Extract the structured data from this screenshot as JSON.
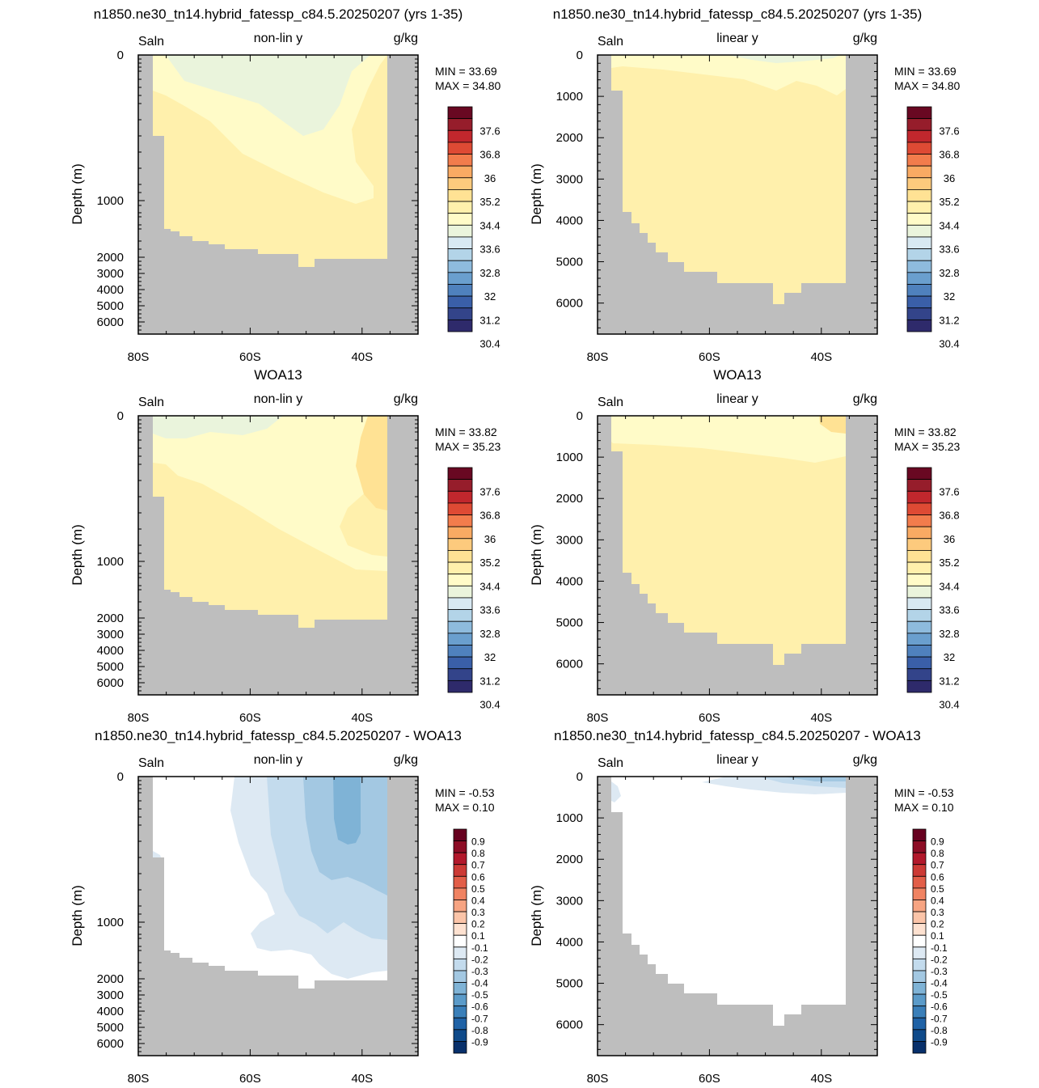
{
  "colors": {
    "land": "#bebebe",
    "abs_levels": [
      "#2e2a6b",
      "#33448a",
      "#3a5fa8",
      "#4f81bd",
      "#6a9fce",
      "#8ebbdd",
      "#b3d4e8",
      "#d8e9f2",
      "#eaf4dc",
      "#fffbc8",
      "#fff0ac",
      "#ffe294",
      "#fdca7d",
      "#f9aa63",
      "#f27c4c",
      "#de4a34",
      "#c1272d",
      "#961d2b",
      "#690822"
    ],
    "diff_levels": [
      "#08306b",
      "#0f4a8a",
      "#1f62a6",
      "#3a7fb9",
      "#5b9bc9",
      "#7fb3d6",
      "#a3c8e2",
      "#c3dbed",
      "#dde9f3",
      "#ffffff",
      "#fde1d0",
      "#fbc4a8",
      "#f7a482",
      "#f08362",
      "#e25e48",
      "#cc3a35",
      "#b2182b",
      "#8d0d25",
      "#67001f"
    ]
  },
  "panels": [
    {
      "id": "model-nonlin",
      "title": "n1850.ne30_tn14.hybrid_fatessp_c84.5.20250207 (yrs 1-35)",
      "left_label": "Saln",
      "center_label": "non-lin y",
      "right_label": "g/kg",
      "min_text": "MIN =  33.69",
      "max_text": "MAX =  34.80",
      "ylabel": "Depth (m)"
    },
    {
      "id": "model-lin",
      "title": "n1850.ne30_tn14.hybrid_fatessp_c84.5.20250207 (yrs 1-35)",
      "left_label": "Saln",
      "center_label": "linear y",
      "right_label": "g/kg",
      "min_text": "MIN =  33.69",
      "max_text": "MAX =  34.80",
      "ylabel": "Depth (m)"
    },
    {
      "id": "obs-nonlin",
      "title": "WOA13",
      "left_label": "Saln",
      "center_label": "non-lin y",
      "right_label": "g/kg",
      "min_text": "MIN =  33.82",
      "max_text": "MAX =  35.23",
      "ylabel": "Depth (m)"
    },
    {
      "id": "obs-lin",
      "title": "WOA13",
      "left_label": "Saln",
      "center_label": "linear y",
      "right_label": "g/kg",
      "min_text": "MIN =  33.82",
      "max_text": "MAX =  35.23",
      "ylabel": "Depth (m)"
    },
    {
      "id": "diff-nonlin",
      "title": "n1850.ne30_tn14.hybrid_fatessp_c84.5.20250207 - WOA13",
      "left_label": "Saln",
      "center_label": "non-lin y",
      "right_label": "g/kg",
      "min_text": "MIN =  -0.53",
      "max_text": "MAX =   0.10",
      "ylabel": "Depth (m)"
    },
    {
      "id": "diff-lin",
      "title": "n1850.ne30_tn14.hybrid_fatessp_c84.5.20250207 - WOA13",
      "left_label": "Saln",
      "center_label": "linear y",
      "right_label": "g/kg",
      "min_text": "MIN =  -0.53",
      "max_text": "MAX =   0.10",
      "ylabel": "Depth (m)"
    }
  ],
  "chart_data": [
    {
      "type": "heatmap",
      "id": "model-nonlin",
      "title": "n1850.ne30_tn14.hybrid_fatessp_c84.5.20250207 (yrs 1-35)",
      "xlabel": "",
      "ylabel": "Depth (m)",
      "y_scale": "non-linear",
      "xlim": [
        -80,
        -30
      ],
      "ylim": [
        0,
        6750
      ],
      "x_ticks": [
        "80S",
        "60S",
        "40S"
      ],
      "y_ticks": [
        "0",
        "1000",
        "2000",
        "3000",
        "4000",
        "5000",
        "6000"
      ],
      "min": 33.69,
      "max": 34.8,
      "colorbar_labels": [
        "37.6",
        "36.8",
        "36",
        "35.2",
        "34.4",
        "33.6",
        "32.8",
        "32",
        "31.2",
        "30.4"
      ]
    },
    {
      "type": "heatmap",
      "id": "model-lin",
      "title": "n1850.ne30_tn14.hybrid_fatessp_c84.5.20250207 (yrs 1-35)",
      "xlabel": "",
      "ylabel": "Depth (m)",
      "y_scale": "linear",
      "xlim": [
        -80,
        -30
      ],
      "ylim": [
        0,
        6750
      ],
      "x_ticks": [
        "80S",
        "60S",
        "40S"
      ],
      "y_ticks": [
        "0",
        "1000",
        "2000",
        "3000",
        "4000",
        "5000",
        "6000"
      ],
      "min": 33.69,
      "max": 34.8,
      "colorbar_labels": [
        "37.6",
        "36.8",
        "36",
        "35.2",
        "34.4",
        "33.6",
        "32.8",
        "32",
        "31.2",
        "30.4"
      ]
    },
    {
      "type": "heatmap",
      "id": "obs-nonlin",
      "title": "WOA13",
      "xlabel": "",
      "ylabel": "Depth (m)",
      "y_scale": "non-linear",
      "xlim": [
        -80,
        -30
      ],
      "ylim": [
        0,
        6750
      ],
      "x_ticks": [
        "80S",
        "60S",
        "40S"
      ],
      "y_ticks": [
        "0",
        "1000",
        "2000",
        "3000",
        "4000",
        "5000",
        "6000"
      ],
      "min": 33.82,
      "max": 35.23,
      "colorbar_labels": [
        "37.6",
        "36.8",
        "36",
        "35.2",
        "34.4",
        "33.6",
        "32.8",
        "32",
        "31.2",
        "30.4"
      ]
    },
    {
      "type": "heatmap",
      "id": "obs-lin",
      "title": "WOA13",
      "xlabel": "",
      "ylabel": "Depth (m)",
      "y_scale": "linear",
      "xlim": [
        -80,
        -30
      ],
      "ylim": [
        0,
        6750
      ],
      "x_ticks": [
        "80S",
        "60S",
        "40S"
      ],
      "y_ticks": [
        "0",
        "1000",
        "2000",
        "3000",
        "4000",
        "5000",
        "6000"
      ],
      "min": 33.82,
      "max": 35.23,
      "colorbar_labels": [
        "37.6",
        "36.8",
        "36",
        "35.2",
        "34.4",
        "33.6",
        "32.8",
        "32",
        "31.2",
        "30.4"
      ]
    },
    {
      "type": "heatmap",
      "id": "diff-nonlin",
      "title": "n1850.ne30_tn14.hybrid_fatessp_c84.5.20250207 - WOA13",
      "xlabel": "",
      "ylabel": "Depth (m)",
      "y_scale": "non-linear",
      "xlim": [
        -80,
        -30
      ],
      "ylim": [
        0,
        6750
      ],
      "x_ticks": [
        "80S",
        "60S",
        "40S"
      ],
      "y_ticks": [
        "0",
        "1000",
        "2000",
        "3000",
        "4000",
        "5000",
        "6000"
      ],
      "min": -0.53,
      "max": 0.1,
      "colorbar_labels": [
        "0.9",
        "0.8",
        "0.7",
        "0.6",
        "0.5",
        "0.4",
        "0.3",
        "0.2",
        "0.1",
        "-0.1",
        "-0.2",
        "-0.3",
        "-0.4",
        "-0.5",
        "-0.6",
        "-0.7",
        "-0.8",
        "-0.9"
      ]
    },
    {
      "type": "heatmap",
      "id": "diff-lin",
      "title": "n1850.ne30_tn14.hybrid_fatessp_c84.5.20250207 - WOA13",
      "xlabel": "",
      "ylabel": "Depth (m)",
      "y_scale": "linear",
      "xlim": [
        -80,
        -30
      ],
      "ylim": [
        0,
        6750
      ],
      "x_ticks": [
        "80S",
        "60S",
        "40S"
      ],
      "y_ticks": [
        "0",
        "1000",
        "2000",
        "3000",
        "4000",
        "5000",
        "6000"
      ],
      "min": -0.53,
      "max": 0.1,
      "colorbar_labels": [
        "0.9",
        "0.8",
        "0.7",
        "0.6",
        "0.5",
        "0.4",
        "0.3",
        "0.2",
        "0.1",
        "-0.1",
        "-0.2",
        "-0.3",
        "-0.4",
        "-0.5",
        "-0.6",
        "-0.7",
        "-0.8",
        "-0.9"
      ]
    }
  ]
}
